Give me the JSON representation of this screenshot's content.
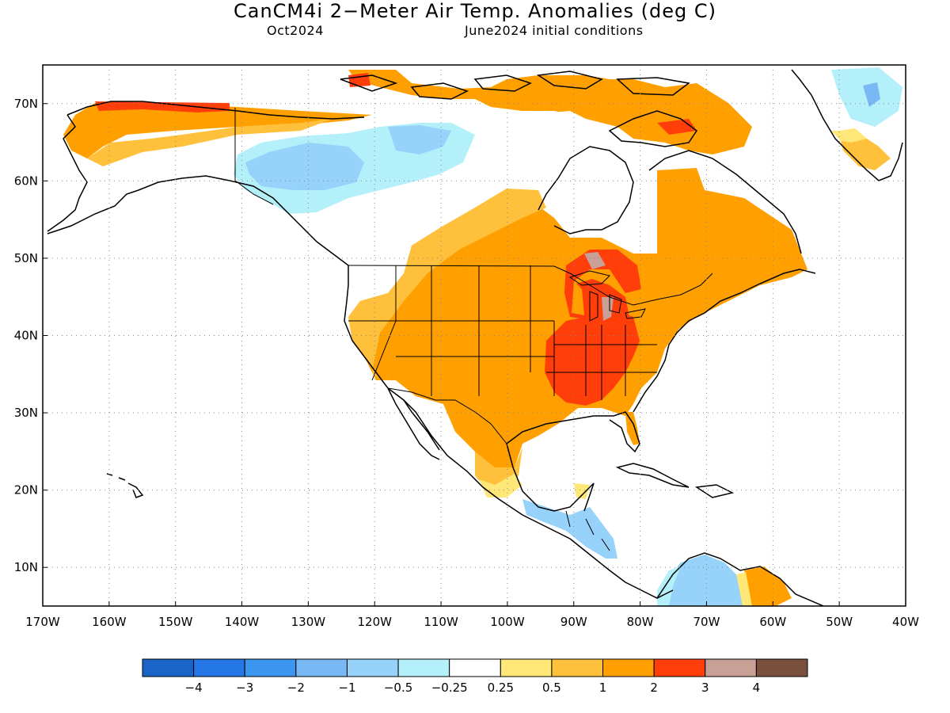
{
  "title": "CanCM4i 2−Meter Air Temp. Anomalies (deg C)",
  "subtitle_left": "Oct2024",
  "subtitle_right": "June2024 initial conditions",
  "map": {
    "lat_range": [
      5,
      75
    ],
    "lon_range": [
      -170,
      -40
    ],
    "lat_ticks": [
      "10N",
      "20N",
      "30N",
      "40N",
      "50N",
      "60N",
      "70N"
    ],
    "lon_ticks": [
      "170W",
      "160W",
      "150W",
      "140W",
      "130W",
      "120W",
      "110W",
      "100W",
      "90W",
      "80W",
      "70W",
      "60W",
      "50W",
      "40W"
    ],
    "gridlines": "dotted"
  },
  "colorbar": {
    "colors": [
      "#1a64c8",
      "#2577e8",
      "#3c96f0",
      "#78b9f5",
      "#96d2fa",
      "#b4f0fa",
      "#ffffff",
      "#ffe878",
      "#ffc03c",
      "#ffa000",
      "#ff3e0a",
      "#c8a096",
      "#78503c"
    ],
    "labels": [
      "−4",
      "−3",
      "−2",
      "−1",
      "−0.5",
      "−0.25",
      "0.25",
      "0.5",
      "1",
      "2",
      "3",
      "4"
    ]
  }
}
